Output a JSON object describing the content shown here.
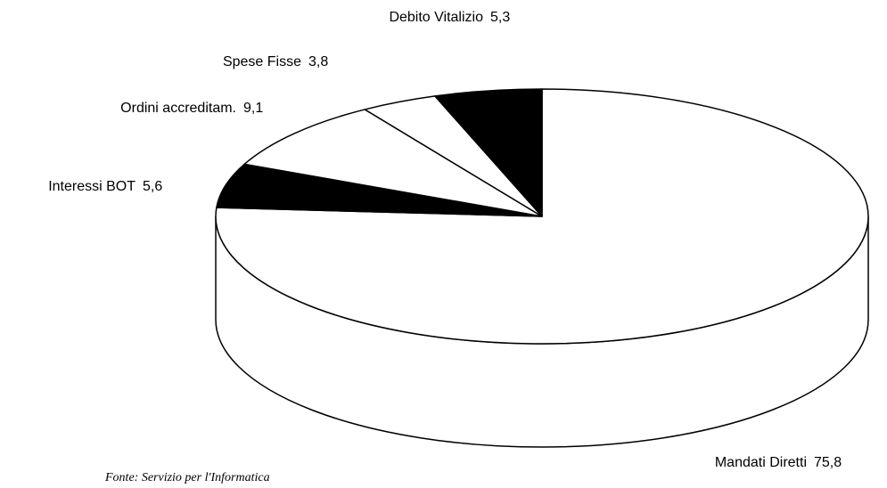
{
  "chart_data": {
    "type": "pie",
    "categories": [
      "Mandati Diretti",
      "Interessi BOT",
      "Ordini accreditam.",
      "Spese Fisse",
      "Debito Vitalizio"
    ],
    "values": [
      75.8,
      5.6,
      9.1,
      3.8,
      5.3
    ],
    "value_labels": [
      "75,8",
      "5,6",
      "9,1",
      "3,8",
      "5,3"
    ],
    "colors": [
      "#ffffff",
      "#000000",
      "#ffffff",
      "#ffffff",
      "#000000"
    ],
    "source": "Fonte: Servizio per l'Informatica"
  }
}
